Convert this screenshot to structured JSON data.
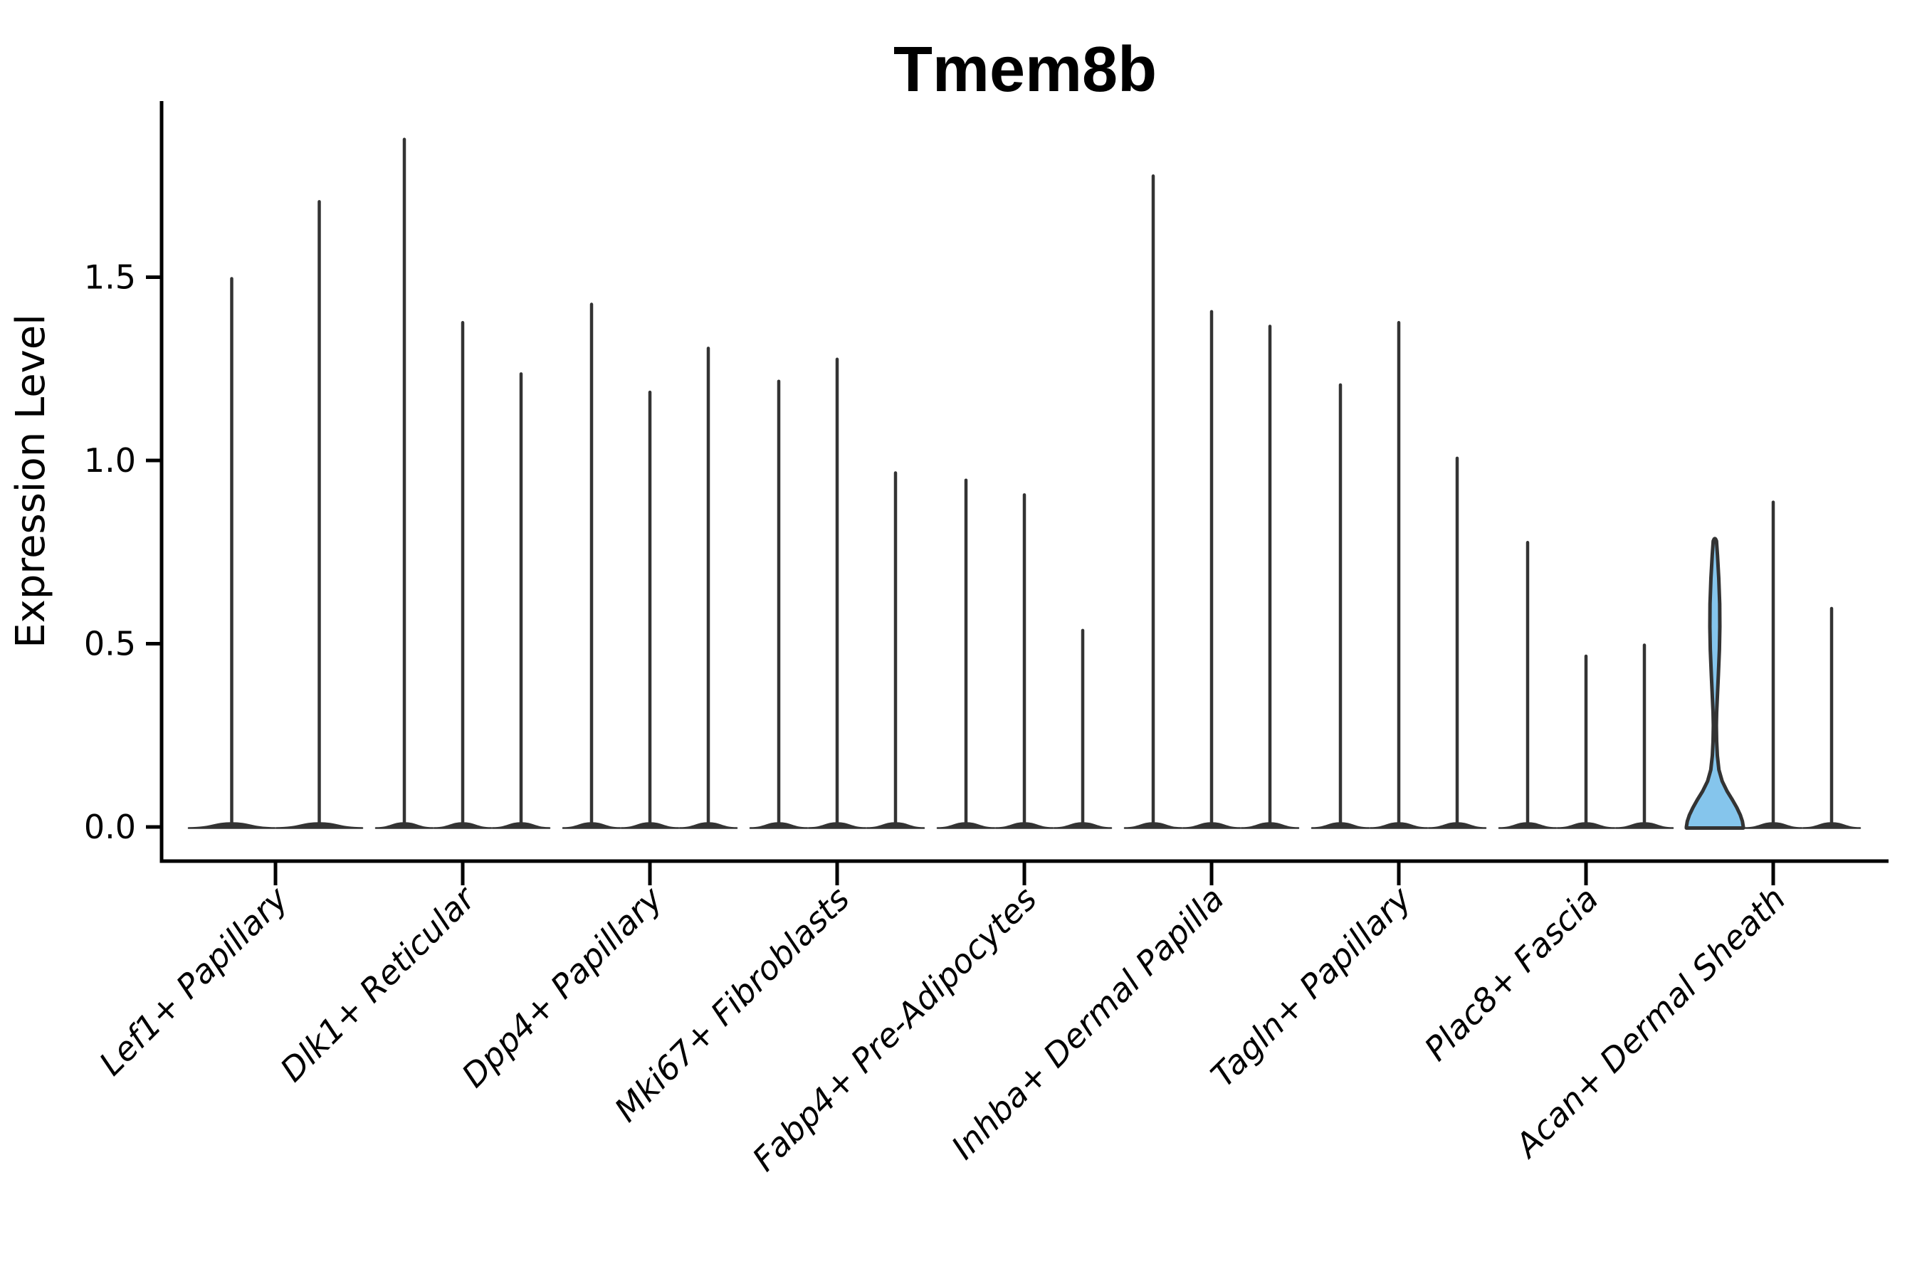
{
  "chart_data": {
    "type": "violin",
    "title": "Tmem8b",
    "ylabel": "Expression Level",
    "xlabel": "",
    "ylim": [
      0,
      1.98
    ],
    "grid": false,
    "legend": false,
    "yticks": [
      {
        "value": 0.0,
        "label": "0.0"
      },
      {
        "value": 0.5,
        "label": "0.5"
      },
      {
        "value": 1.0,
        "label": "1.0"
      },
      {
        "value": 1.5,
        "label": "1.5"
      }
    ],
    "categories": [
      "Lef1+ Papillary",
      "Dlk1+ Reticular",
      "Dpp4+ Papillary",
      "Mki67+ Fibroblasts",
      "Fabp4+ Pre-Adipocytes",
      "Inhba+ Dermal Papilla",
      "Tagln+ Papillary",
      "Plac8+ Fascia",
      "Acan+ Dermal Sheath"
    ],
    "series": [
      {
        "category": "Lef1+ Papillary",
        "violins": [
          {
            "peak": 1.5,
            "filled": false
          },
          {
            "peak": 1.71,
            "filled": false
          }
        ]
      },
      {
        "category": "Dlk1+ Reticular",
        "violins": [
          {
            "peak": 1.88,
            "filled": false
          },
          {
            "peak": 1.38,
            "filled": false
          },
          {
            "peak": 1.24,
            "filled": false
          }
        ]
      },
      {
        "category": "Dpp4+ Papillary",
        "violins": [
          {
            "peak": 1.43,
            "filled": false
          },
          {
            "peak": 1.19,
            "filled": false
          },
          {
            "peak": 1.31,
            "filled": false
          }
        ]
      },
      {
        "category": "Mki67+ Fibroblasts",
        "violins": [
          {
            "peak": 1.22,
            "filled": false
          },
          {
            "peak": 1.28,
            "filled": false
          },
          {
            "peak": 0.97,
            "filled": false
          }
        ]
      },
      {
        "category": "Fabp4+ Pre-Adipocytes",
        "violins": [
          {
            "peak": 0.95,
            "filled": false
          },
          {
            "peak": 0.91,
            "filled": false
          },
          {
            "peak": 0.54,
            "filled": false
          }
        ]
      },
      {
        "category": "Inhba+ Dermal Papilla",
        "violins": [
          {
            "peak": 1.78,
            "filled": false
          },
          {
            "peak": 1.41,
            "filled": false
          },
          {
            "peak": 1.37,
            "filled": false
          }
        ]
      },
      {
        "category": "Tagln+ Papillary",
        "violins": [
          {
            "peak": 1.21,
            "filled": false
          },
          {
            "peak": 1.38,
            "filled": false
          },
          {
            "peak": 1.01,
            "filled": false
          }
        ]
      },
      {
        "category": "Plac8+ Fascia",
        "violins": [
          {
            "peak": 0.78,
            "filled": false
          },
          {
            "peak": 0.47,
            "filled": false
          },
          {
            "peak": 0.5,
            "filled": false
          }
        ]
      },
      {
        "category": "Acan+ Dermal Sheath",
        "violins": [
          {
            "peak": 0.78,
            "filled": true
          },
          {
            "peak": 0.89,
            "filled": false
          },
          {
            "peak": 0.6,
            "filled": false
          }
        ]
      }
    ],
    "edge_color": "#333333",
    "highlight_fill": "#85C5EC",
    "axis_color": "#000000"
  }
}
